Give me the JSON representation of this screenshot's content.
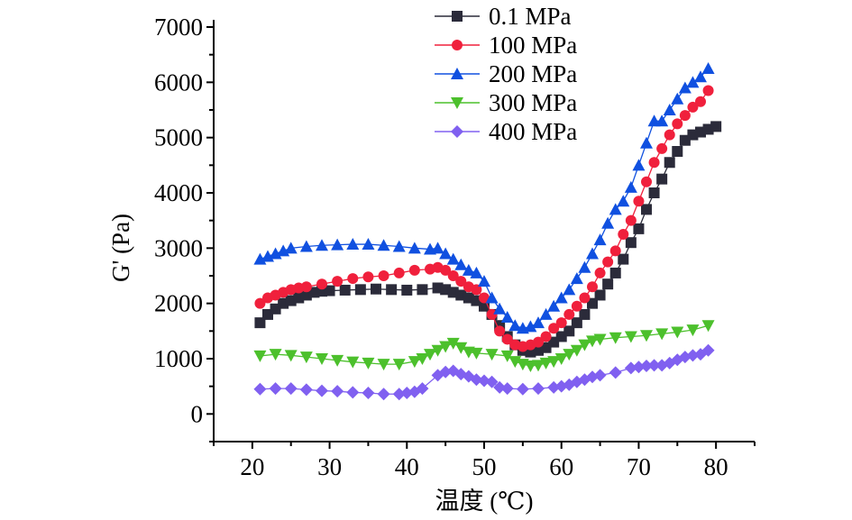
{
  "chart_data": {
    "type": "line",
    "title": "",
    "xlabel": "温度 (℃)",
    "ylabel": "G' (Pa)",
    "xlim": [
      15,
      85
    ],
    "ylim": [
      -500,
      7000
    ],
    "xticks": [
      20,
      30,
      40,
      50,
      60,
      70,
      80
    ],
    "yticks": [
      0,
      1000,
      2000,
      3000,
      4000,
      5000,
      6000,
      7000
    ],
    "grid": false,
    "legend_position": "top",
    "series": [
      {
        "name": "0.1 MPa",
        "color": "#2b2b3a",
        "marker": "square",
        "x": [
          21,
          22,
          23,
          24,
          25,
          26,
          27,
          28,
          29,
          30,
          32,
          34,
          36,
          38,
          40,
          42,
          44,
          45,
          46,
          47,
          48,
          49,
          50,
          51,
          52,
          53,
          54,
          55,
          56,
          57,
          58,
          59,
          60,
          61,
          62,
          63,
          64,
          65,
          66,
          67,
          68,
          69,
          70,
          71,
          72,
          73,
          74,
          75,
          76,
          77,
          78,
          79,
          80
        ],
        "y": [
          1650,
          1800,
          1900,
          2000,
          2050,
          2100,
          2150,
          2200,
          2220,
          2230,
          2240,
          2250,
          2260,
          2250,
          2240,
          2250,
          2280,
          2250,
          2200,
          2150,
          2100,
          2050,
          1950,
          1800,
          1600,
          1400,
          1250,
          1150,
          1120,
          1150,
          1200,
          1300,
          1400,
          1500,
          1650,
          1800,
          2000,
          2150,
          2350,
          2550,
          2800,
          3100,
          3350,
          3700,
          4000,
          4250,
          4550,
          4750,
          4950,
          5050,
          5100,
          5150,
          5200
        ]
      },
      {
        "name": "100 MPa",
        "color": "#f0203c",
        "marker": "circle",
        "x": [
          21,
          22,
          23,
          24,
          25,
          26,
          27,
          29,
          31,
          33,
          35,
          37,
          39,
          41,
          43,
          44,
          45,
          46,
          47,
          48,
          49,
          50,
          51,
          52,
          53,
          54,
          55,
          56,
          57,
          58,
          59,
          60,
          61,
          62,
          63,
          64,
          65,
          66,
          67,
          68,
          69,
          70,
          71,
          72,
          73,
          74,
          75,
          76,
          77,
          78,
          79
        ],
        "y": [
          2000,
          2100,
          2150,
          2200,
          2250,
          2280,
          2300,
          2350,
          2400,
          2450,
          2480,
          2500,
          2550,
          2600,
          2620,
          2650,
          2600,
          2500,
          2400,
          2300,
          2250,
          2100,
          1800,
          1500,
          1350,
          1250,
          1220,
          1250,
          1300,
          1400,
          1550,
          1650,
          1800,
          1950,
          2100,
          2300,
          2550,
          2750,
          2950,
          3250,
          3500,
          3850,
          4200,
          4550,
          4800,
          5050,
          5250,
          5400,
          5550,
          5650,
          5850
        ]
      },
      {
        "name": "200 MPa",
        "color": "#1050e0",
        "marker": "triangle-up",
        "x": [
          21,
          22,
          23,
          24,
          25,
          27,
          29,
          31,
          33,
          35,
          37,
          39,
          41,
          43,
          44,
          45,
          46,
          47,
          48,
          49,
          50,
          51,
          52,
          53,
          54,
          55,
          56,
          57,
          58,
          59,
          60,
          61,
          62,
          63,
          64,
          65,
          66,
          67,
          68,
          69,
          70,
          71,
          72,
          73,
          74,
          75,
          76,
          77,
          78,
          79
        ],
        "y": [
          2800,
          2850,
          2900,
          2950,
          3000,
          3030,
          3050,
          3060,
          3070,
          3070,
          3050,
          3030,
          3000,
          2980,
          3000,
          2900,
          2800,
          2700,
          2600,
          2550,
          2400,
          2100,
          1900,
          1750,
          1600,
          1550,
          1580,
          1650,
          1800,
          1950,
          2100,
          2250,
          2450,
          2650,
          2900,
          3150,
          3450,
          3700,
          3850,
          4100,
          4500,
          4900,
          5300,
          5300,
          5500,
          5700,
          5900,
          6000,
          6100,
          6250
        ]
      },
      {
        "name": "300 MPa",
        "color": "#4cc02c",
        "marker": "triangle-down",
        "x": [
          21,
          23,
          25,
          27,
          29,
          31,
          33,
          35,
          37,
          39,
          41,
          42,
          43,
          44,
          45,
          46,
          47,
          48,
          49,
          51,
          53,
          54,
          55,
          56,
          57,
          58,
          59,
          60,
          61,
          62,
          63,
          64,
          65,
          67,
          69,
          71,
          73,
          75,
          77,
          79
        ],
        "y": [
          1050,
          1080,
          1060,
          1030,
          1000,
          970,
          940,
          920,
          900,
          900,
          950,
          1000,
          1080,
          1150,
          1220,
          1280,
          1200,
          1120,
          1100,
          1080,
          1050,
          950,
          900,
          870,
          880,
          920,
          950,
          1000,
          1080,
          1150,
          1250,
          1320,
          1350,
          1380,
          1400,
          1420,
          1450,
          1480,
          1520,
          1600
        ]
      },
      {
        "name": "400 MPa",
        "color": "#8060f0",
        "marker": "diamond",
        "x": [
          21,
          23,
          25,
          27,
          29,
          31,
          33,
          35,
          37,
          39,
          40,
          41,
          42,
          44,
          45,
          46,
          47,
          48,
          49,
          50,
          51,
          52,
          53,
          55,
          57,
          59,
          60,
          61,
          62,
          63,
          64,
          65,
          67,
          69,
          70,
          71,
          72,
          73,
          74,
          75,
          76,
          77,
          78,
          79
        ],
        "y": [
          450,
          460,
          460,
          440,
          420,
          410,
          390,
          380,
          360,
          360,
          380,
          400,
          460,
          700,
          760,
          780,
          720,
          680,
          620,
          600,
          580,
          480,
          460,
          450,
          460,
          480,
          500,
          530,
          580,
          620,
          670,
          700,
          750,
          830,
          850,
          870,
          880,
          880,
          920,
          980,
          1030,
          1060,
          1080,
          1150
        ]
      }
    ]
  }
}
